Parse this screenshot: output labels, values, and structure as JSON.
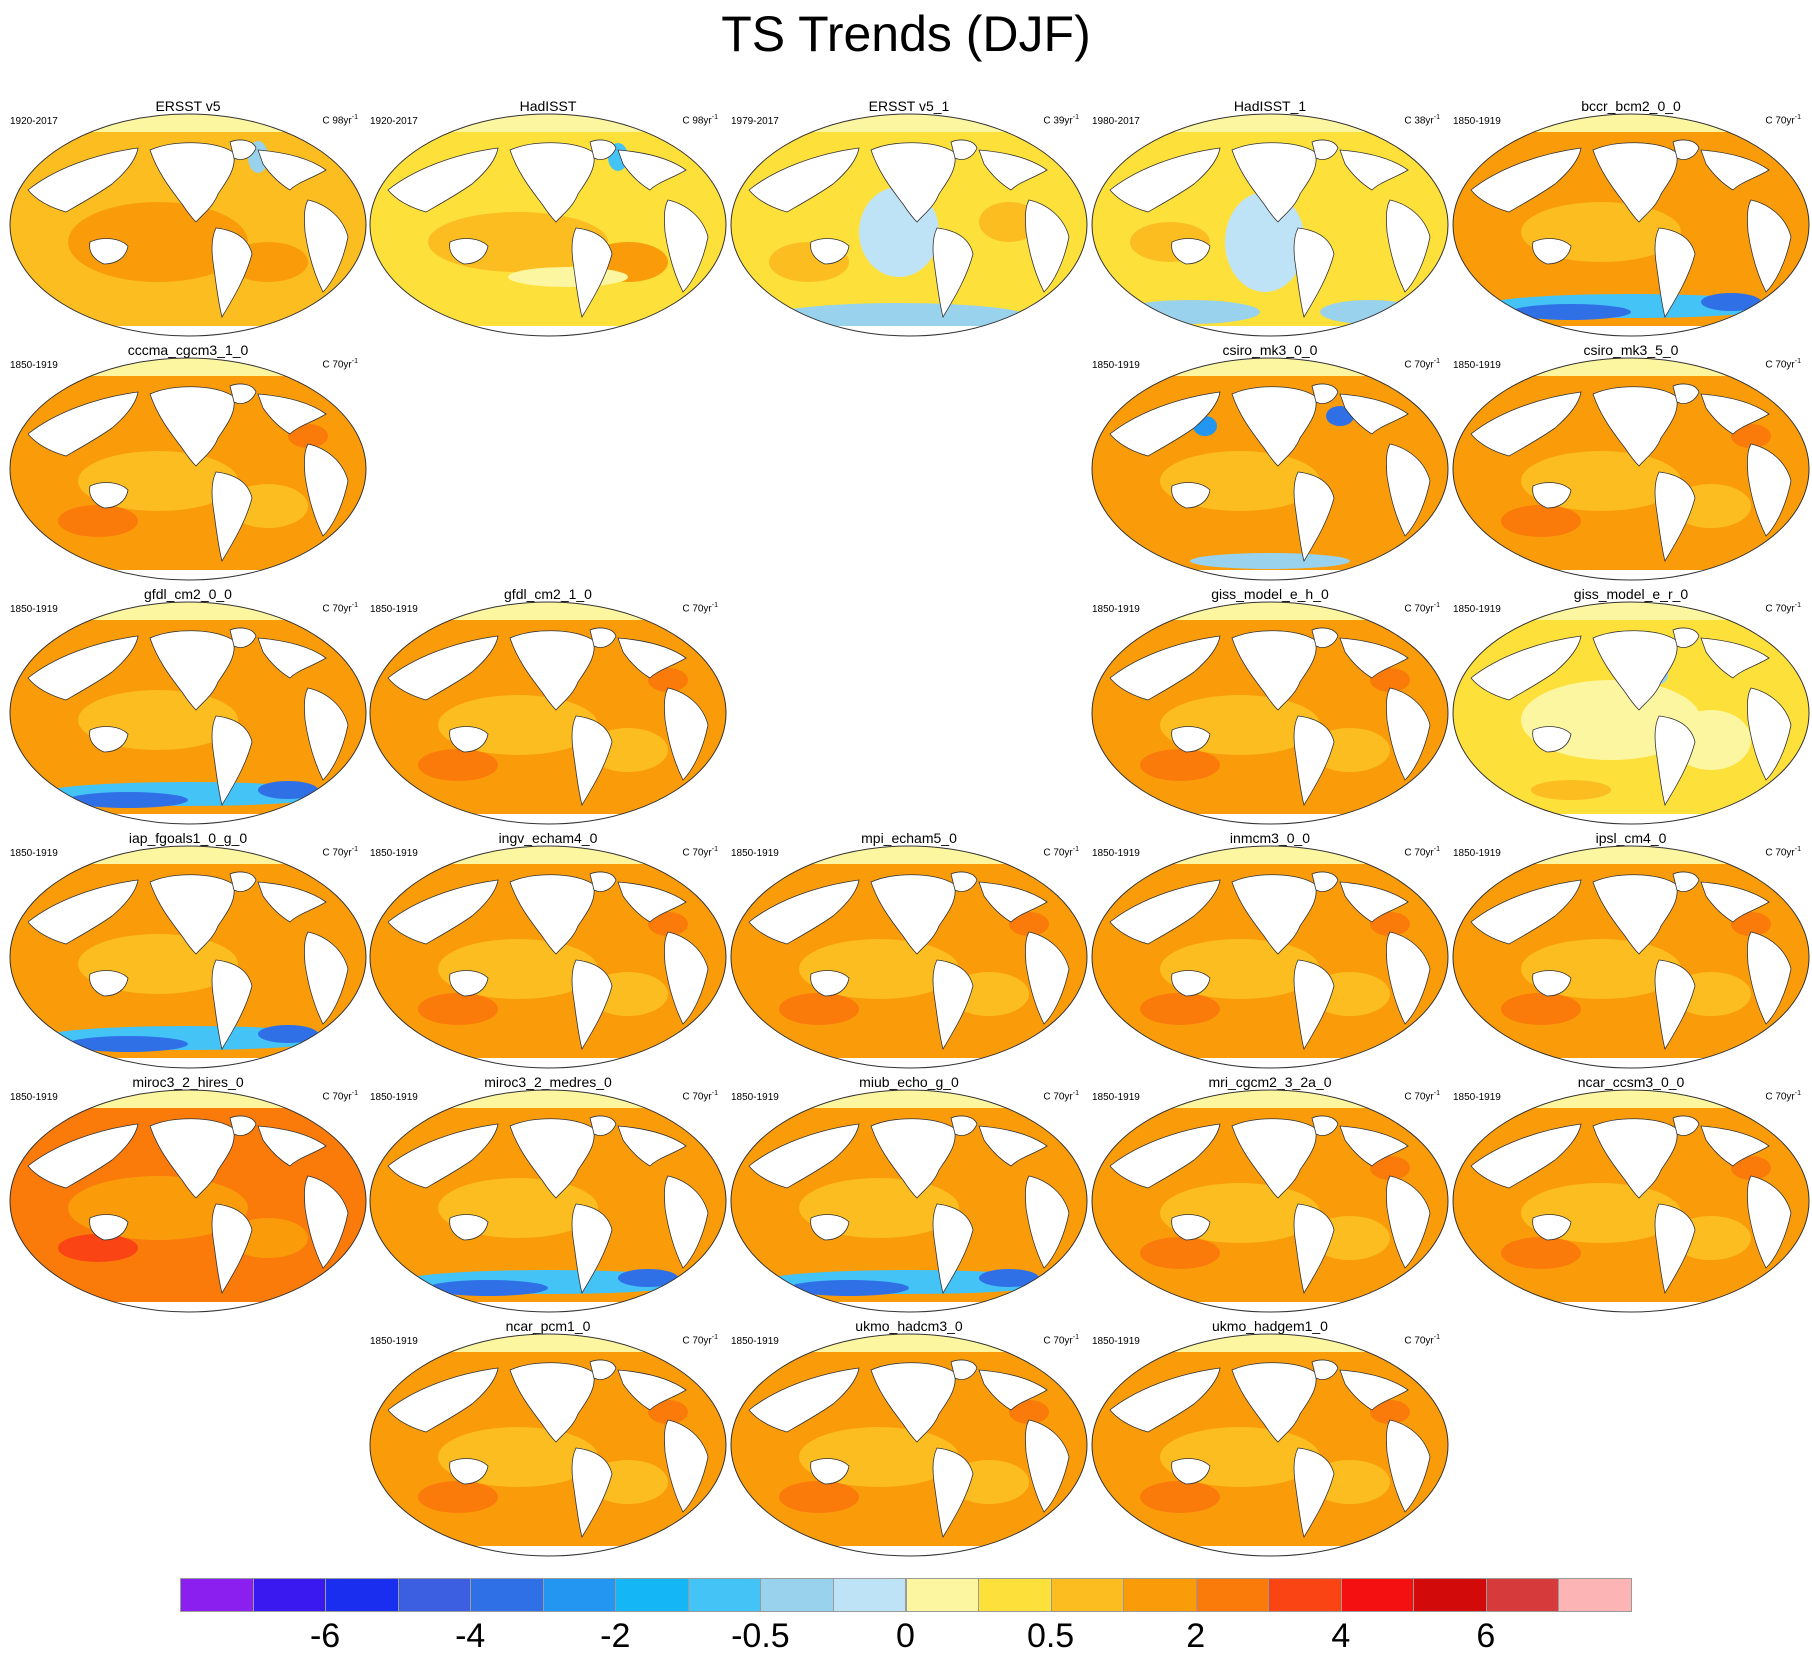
{
  "title": "TS Trends (DJF)",
  "panels": [
    {
      "title": "ERSST v5",
      "period": "1920-2017",
      "unit": "C 98yr",
      "unit_exp": "-1",
      "pattern": "obs1"
    },
    {
      "title": "HadISST",
      "period": "1920-2017",
      "unit": "C 98yr",
      "unit_exp": "-1",
      "pattern": "obs2"
    },
    {
      "title": "ERSST v5_1",
      "period": "1979-2017",
      "unit": "C 39yr",
      "unit_exp": "-1",
      "pattern": "obs3"
    },
    {
      "title": "HadISST_1",
      "period": "1980-2017",
      "unit": "C 38yr",
      "unit_exp": "-1",
      "pattern": "obs4"
    },
    {
      "title": "bccr_bcm2_0_0",
      "period": "1850-1919",
      "unit": "C 70yr",
      "unit_exp": "-1",
      "pattern": "warm_blue_south"
    },
    {
      "title": "cccma_cgcm3_1_0",
      "period": "1850-1919",
      "unit": "C 70yr",
      "unit_exp": "-1",
      "pattern": "warm"
    },
    {
      "title": "csiro_mk3_0_0",
      "period": "1850-1919",
      "unit": "C 70yr",
      "unit_exp": "-1",
      "pattern": "warm_blue_north"
    },
    {
      "title": "csiro_mk3_5_0",
      "period": "1850-1919",
      "unit": "C 70yr",
      "unit_exp": "-1",
      "pattern": "warm"
    },
    {
      "title": "gfdl_cm2_0_0",
      "period": "1850-1919",
      "unit": "C 70yr",
      "unit_exp": "-1",
      "pattern": "warm_blue_south"
    },
    {
      "title": "gfdl_cm2_1_0",
      "period": "1850-1919",
      "unit": "C 70yr",
      "unit_exp": "-1",
      "pattern": "warm"
    },
    {
      "title": "giss_model_e_h_0",
      "period": "1850-1919",
      "unit": "C 70yr",
      "unit_exp": "-1",
      "pattern": "warm"
    },
    {
      "title": "giss_model_e_r_0",
      "period": "1850-1919",
      "unit": "C 70yr",
      "unit_exp": "-1",
      "pattern": "pale"
    },
    {
      "title": "iap_fgoals1_0_g_0",
      "period": "1850-1919",
      "unit": "C 70yr",
      "unit_exp": "-1",
      "pattern": "warm_blue_south"
    },
    {
      "title": "ingv_echam4_0",
      "period": "1850-1919",
      "unit": "C 70yr",
      "unit_exp": "-1",
      "pattern": "warm"
    },
    {
      "title": "mpi_echam5_0",
      "period": "1850-1919",
      "unit": "C 70yr",
      "unit_exp": "-1",
      "pattern": "warm"
    },
    {
      "title": "inmcm3_0_0",
      "period": "1850-1919",
      "unit": "C 70yr",
      "unit_exp": "-1",
      "pattern": "warm"
    },
    {
      "title": "ipsl_cm4_0",
      "period": "1850-1919",
      "unit": "C 70yr",
      "unit_exp": "-1",
      "pattern": "warm"
    },
    {
      "title": "miroc3_2_hires_0",
      "period": "1850-1919",
      "unit": "C 70yr",
      "unit_exp": "-1",
      "pattern": "hot"
    },
    {
      "title": "miroc3_2_medres_0",
      "period": "1850-1919",
      "unit": "C 70yr",
      "unit_exp": "-1",
      "pattern": "warm_blue_south"
    },
    {
      "title": "miub_echo_g_0",
      "period": "1850-1919",
      "unit": "C 70yr",
      "unit_exp": "-1",
      "pattern": "warm_blue_south"
    },
    {
      "title": "mri_cgcm2_3_2a_0",
      "period": "1850-1919",
      "unit": "C 70yr",
      "unit_exp": "-1",
      "pattern": "warm"
    },
    {
      "title": "ncar_ccsm3_0_0",
      "period": "1850-1919",
      "unit": "C 70yr",
      "unit_exp": "-1",
      "pattern": "warm"
    },
    {
      "title": "ncar_pcm1_0",
      "period": "1850-1919",
      "unit": "C 70yr",
      "unit_exp": "-1",
      "pattern": "warm"
    },
    {
      "title": "ukmo_hadcm3_0",
      "period": "1850-1919",
      "unit": "C 70yr",
      "unit_exp": "-1",
      "pattern": "warm"
    },
    {
      "title": "ukmo_hadgem1_0",
      "period": "1850-1919",
      "unit": "C 70yr",
      "unit_exp": "-1",
      "pattern": "warm"
    }
  ],
  "colorbar": {
    "colors": [
      "#8a1ff0",
      "#3a18f0",
      "#1a2ef0",
      "#3c5ee0",
      "#3070e6",
      "#2296f0",
      "#14b6f6",
      "#43c3f6",
      "#98d2ec",
      "#bfe3f6",
      "#fdf6a0",
      "#fde03a",
      "#fbbd20",
      "#fa9c0a",
      "#fa7a0a",
      "#fa4414",
      "#f41010",
      "#d20a0a",
      "#d63a3a",
      "#fdb4b4"
    ],
    "tick_labels": [
      {
        "label": "-6",
        "after_box": 2
      },
      {
        "label": "-4",
        "after_box": 4
      },
      {
        "label": "-2",
        "after_box": 6
      },
      {
        "label": "-0.5",
        "after_box": 8
      },
      {
        "label": "0",
        "after_box": 10
      },
      {
        "label": "0.5",
        "after_box": 12
      },
      {
        "label": "2",
        "after_box": 14
      },
      {
        "label": "4",
        "after_box": 16
      },
      {
        "label": "6",
        "after_box": 18
      }
    ]
  }
}
